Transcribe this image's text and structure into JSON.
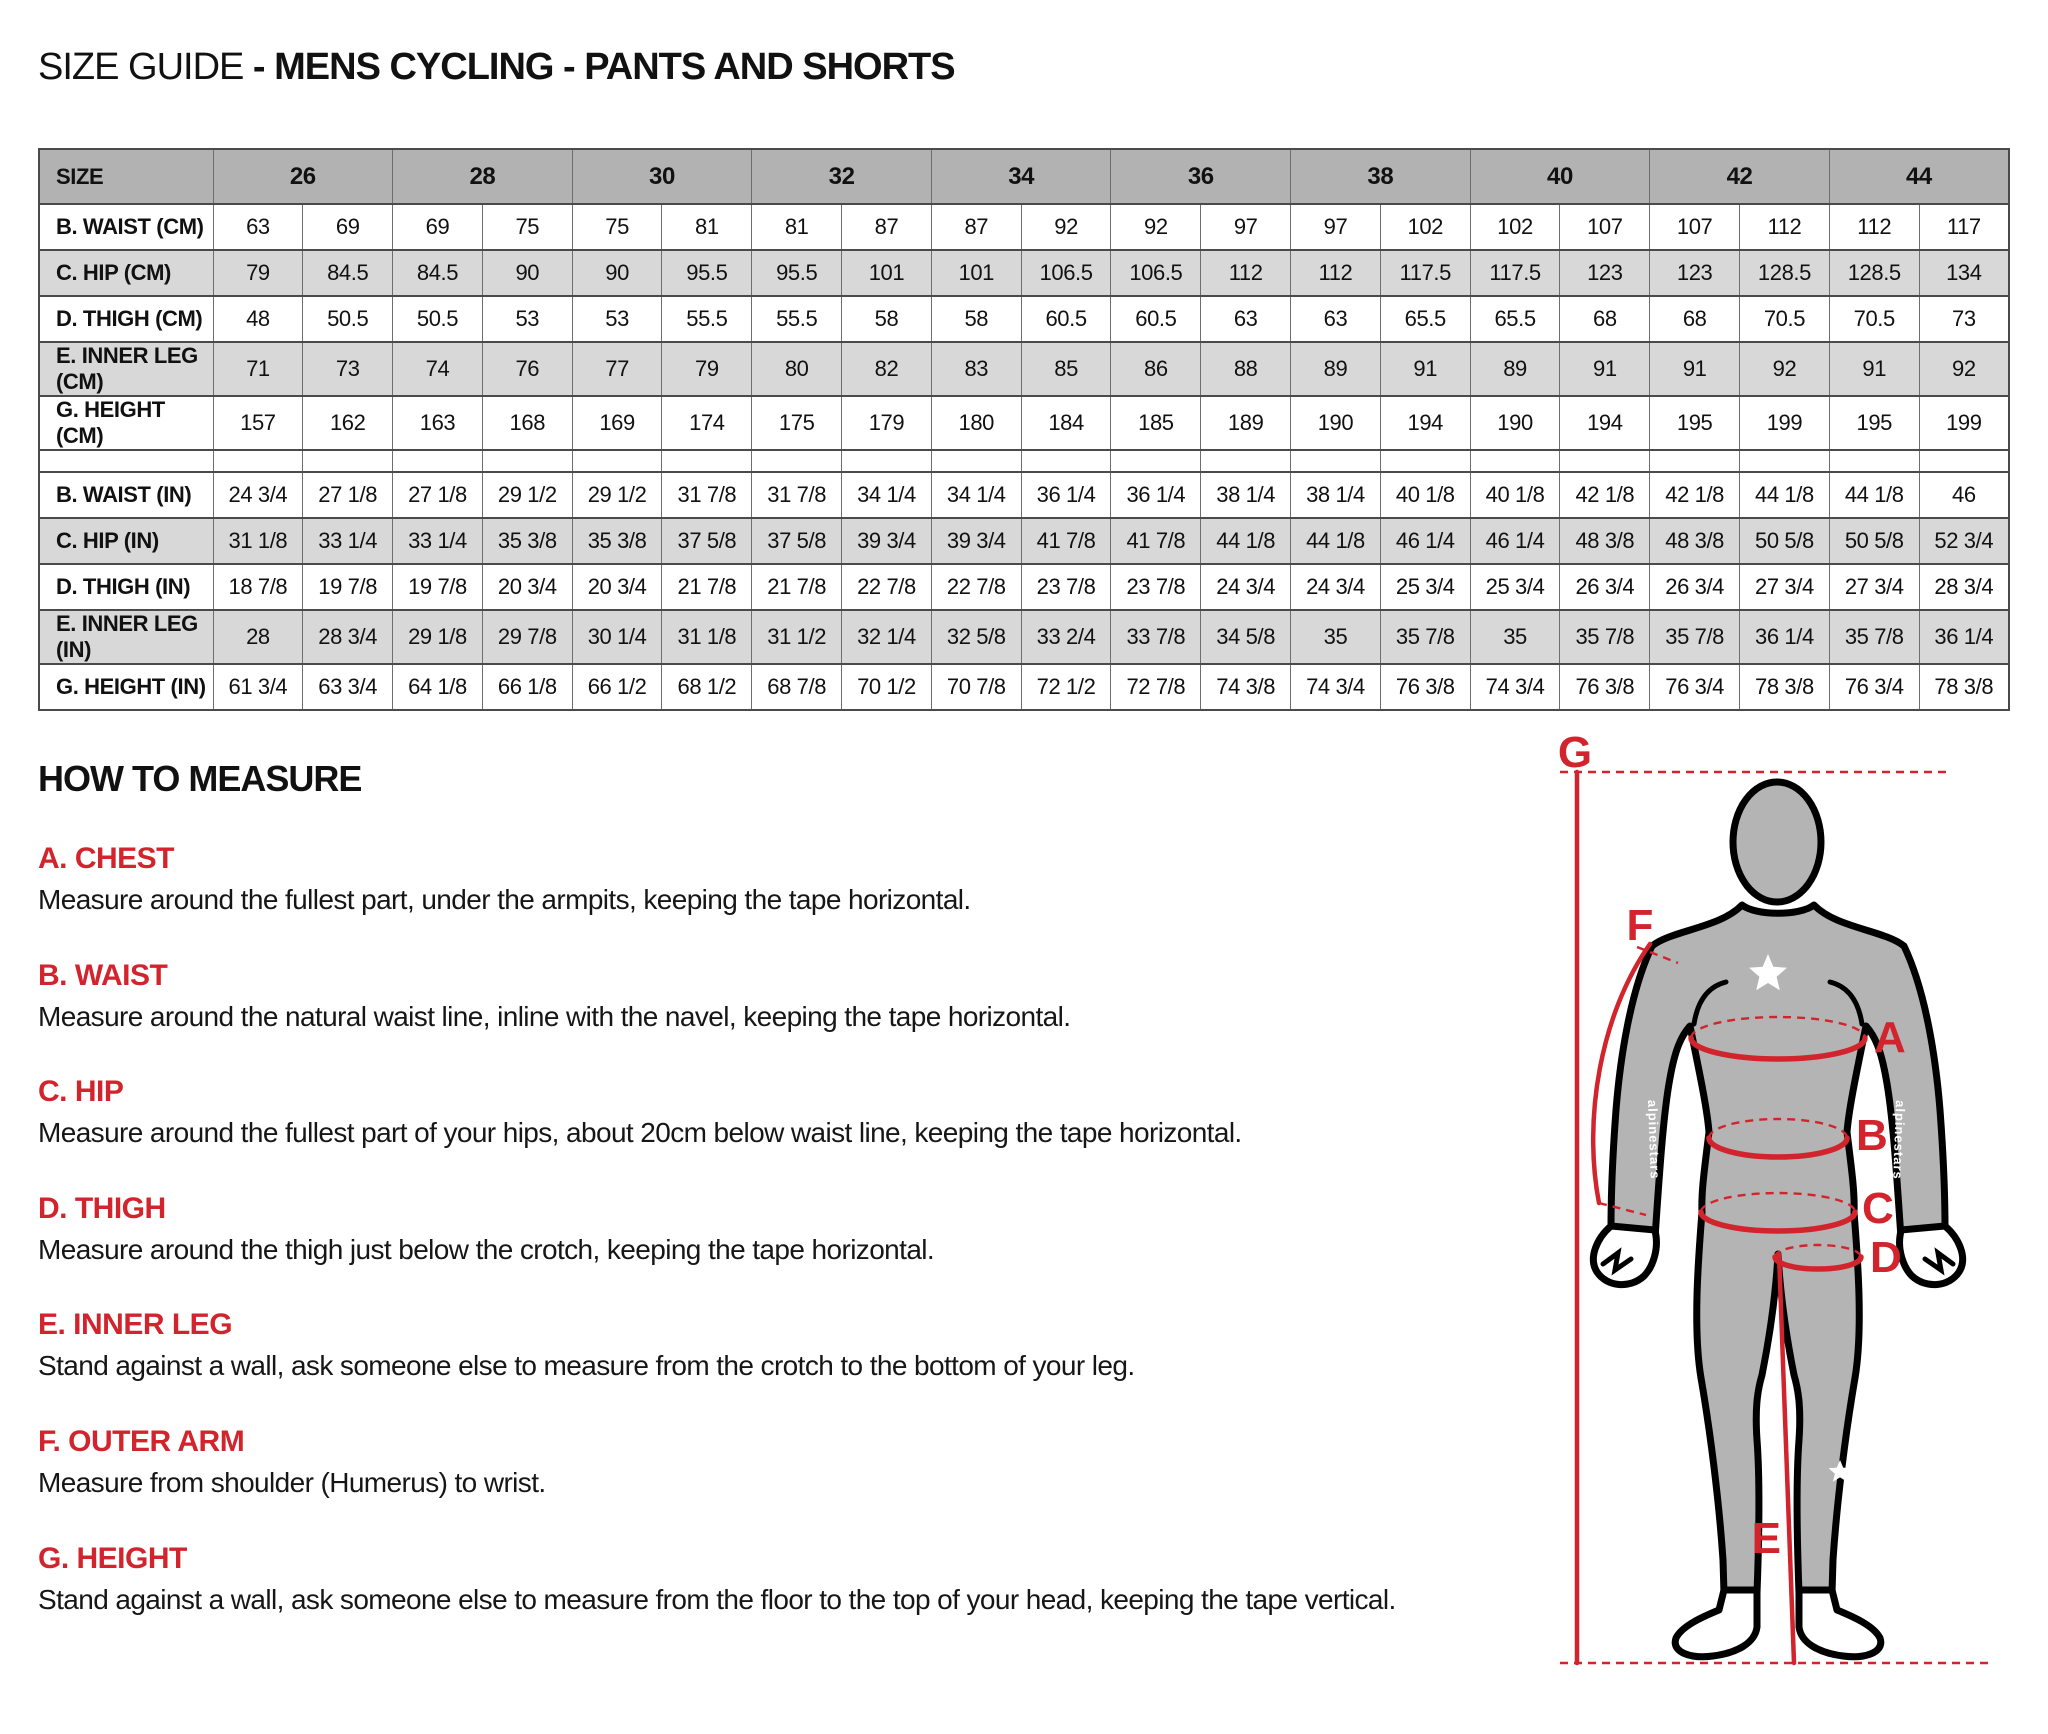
{
  "title": {
    "prefix": "SIZE GUIDE ",
    "bold": "- MENS CYCLING - PANTS AND SHORTS"
  },
  "table": {
    "size_label": "SIZE",
    "sizes": [
      "26",
      "28",
      "30",
      "32",
      "34",
      "36",
      "38",
      "40",
      "42",
      "44"
    ],
    "cm_rows": [
      {
        "label": "B. WAIST (CM)",
        "values": [
          "63",
          "69",
          "69",
          "75",
          "75",
          "81",
          "81",
          "87",
          "87",
          "92",
          "92",
          "97",
          "97",
          "102",
          "102",
          "107",
          "107",
          "112",
          "112",
          "117"
        ]
      },
      {
        "label": "C. HIP (CM)",
        "values": [
          "79",
          "84.5",
          "84.5",
          "90",
          "90",
          "95.5",
          "95.5",
          "101",
          "101",
          "106.5",
          "106.5",
          "112",
          "112",
          "117.5",
          "117.5",
          "123",
          "123",
          "128.5",
          "128.5",
          "134"
        ]
      },
      {
        "label": "D. THIGH (CM)",
        "values": [
          "48",
          "50.5",
          "50.5",
          "53",
          "53",
          "55.5",
          "55.5",
          "58",
          "58",
          "60.5",
          "60.5",
          "63",
          "63",
          "65.5",
          "65.5",
          "68",
          "68",
          "70.5",
          "70.5",
          "73"
        ]
      },
      {
        "label": "E. INNER LEG (CM)",
        "values": [
          "71",
          "73",
          "74",
          "76",
          "77",
          "79",
          "80",
          "82",
          "83",
          "85",
          "86",
          "88",
          "89",
          "91",
          "89",
          "91",
          "91",
          "92",
          "91",
          "92"
        ]
      },
      {
        "label": "G. HEIGHT (CM)",
        "values": [
          "157",
          "162",
          "163",
          "168",
          "169",
          "174",
          "175",
          "179",
          "180",
          "184",
          "185",
          "189",
          "190",
          "194",
          "190",
          "194",
          "195",
          "199",
          "195",
          "199"
        ]
      }
    ],
    "in_rows": [
      {
        "label": "B. WAIST (IN)",
        "values": [
          "24 3/4",
          "27 1/8",
          "27 1/8",
          "29 1/2",
          "29 1/2",
          "31 7/8",
          "31 7/8",
          "34 1/4",
          "34 1/4",
          "36 1/4",
          "36 1/4",
          "38 1/4",
          "38 1/4",
          "40 1/8",
          "40 1/8",
          "42 1/8",
          "42 1/8",
          "44 1/8",
          "44 1/8",
          "46"
        ]
      },
      {
        "label": "C. HIP (IN)",
        "values": [
          "31 1/8",
          "33 1/4",
          "33 1/4",
          "35 3/8",
          "35 3/8",
          "37 5/8",
          "37 5/8",
          "39 3/4",
          "39 3/4",
          "41 7/8",
          "41 7/8",
          "44 1/8",
          "44 1/8",
          "46 1/4",
          "46 1/4",
          "48 3/8",
          "48 3/8",
          "50 5/8",
          "50 5/8",
          "52 3/4"
        ]
      },
      {
        "label": "D. THIGH (IN)",
        "values": [
          "18 7/8",
          "19 7/8",
          "19 7/8",
          "20 3/4",
          "20 3/4",
          "21 7/8",
          "21 7/8",
          "22 7/8",
          "22 7/8",
          "23 7/8",
          "23 7/8",
          "24 3/4",
          "24 3/4",
          "25 3/4",
          "25 3/4",
          "26 3/4",
          "26 3/4",
          "27 3/4",
          "27 3/4",
          "28 3/4"
        ]
      },
      {
        "label": "E. INNER LEG (IN)",
        "values": [
          "28",
          "28 3/4",
          "29 1/8",
          "29 7/8",
          "30 1/4",
          "31 1/8",
          "31 1/2",
          "32 1/4",
          "32 5/8",
          "33 2/4",
          "33 7/8",
          "34 5/8",
          "35",
          "35 7/8",
          "35",
          "35 7/8",
          "35 7/8",
          "36 1/4",
          "35 7/8",
          "36 1/4"
        ]
      },
      {
        "label": "G. HEIGHT (IN)",
        "values": [
          "61 3/4",
          "63 3/4",
          "64 1/8",
          "66 1/8",
          "66 1/2",
          "68 1/2",
          "68 7/8",
          "70 1/2",
          "70 7/8",
          "72 1/2",
          "72 7/8",
          "74 3/8",
          "74 3/4",
          "76 3/8",
          "74 3/4",
          "76 3/8",
          "76 3/4",
          "78 3/8",
          "76 3/4",
          "78 3/8"
        ]
      }
    ]
  },
  "how_to_measure": {
    "heading": "HOW TO MEASURE",
    "items": [
      {
        "label": "A. CHEST",
        "text": "Measure around the fullest part, under the armpits, keeping the tape horizontal."
      },
      {
        "label": "B. WAIST",
        "text": "Measure around the natural waist line, inline with the navel, keeping the tape horizontal."
      },
      {
        "label": "C. HIP",
        "text": "Measure around the fullest part of your hips, about 20cm below waist line, keeping the tape horizontal."
      },
      {
        "label": "D. THIGH",
        "text": "Measure around the thigh just below the crotch, keeping the tape horizontal."
      },
      {
        "label": "E. INNER LEG",
        "text": "Stand against a wall, ask someone else to measure from the crotch to the bottom of your leg."
      },
      {
        "label": "F. OUTER ARM",
        "text": "Measure from shoulder (Humerus) to wrist."
      },
      {
        "label": "G. HEIGHT",
        "text": "Stand against a wall, ask someone else to measure from the floor to the top of your head, keeping the tape vertical."
      }
    ]
  },
  "diagram": {
    "labels": {
      "chest": "A",
      "waist": "B",
      "hip": "C",
      "thigh": "D",
      "inner_leg": "E",
      "outer_arm": "F",
      "height": "G"
    }
  },
  "colors": {
    "accent_red": "#d2242c",
    "header_gray": "#b2b2b2",
    "stripe_gray": "#d8d8d8",
    "body_gray": "#b4b4b4"
  }
}
